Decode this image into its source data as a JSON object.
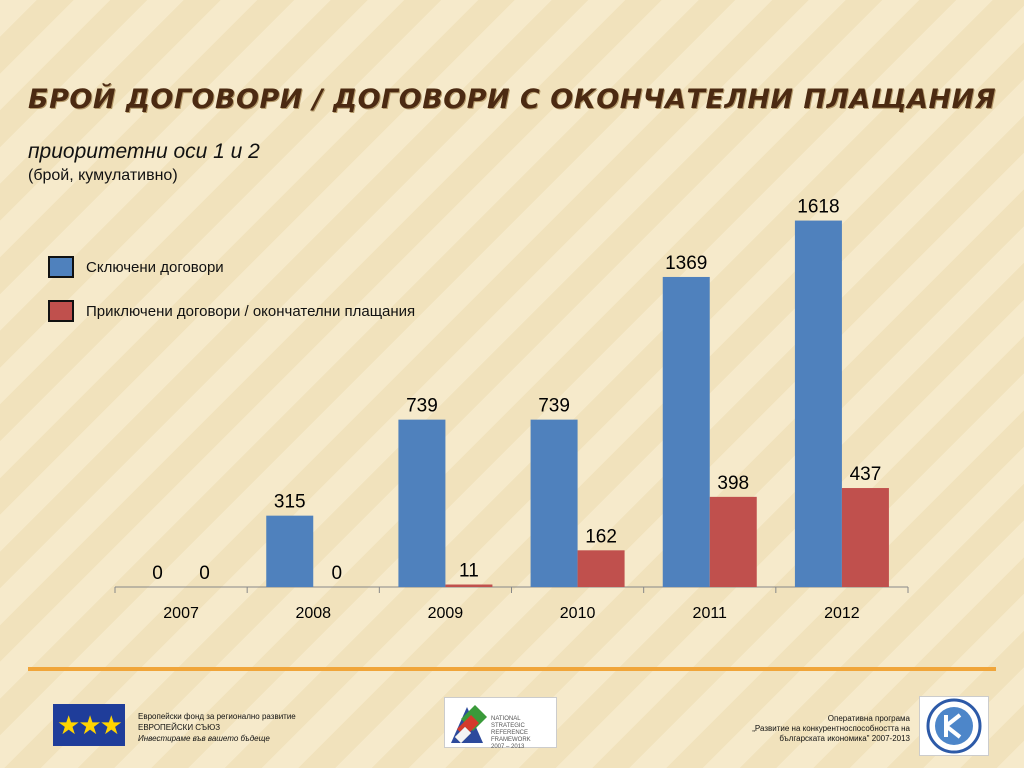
{
  "title": "БРОЙ ДОГОВОРИ / ДОГОВОРИ С ОКОНЧАТЕЛНИ ПЛАЩАНИЯ",
  "subtitle": "приоритетни оси 1 и 2",
  "subtitle2": "(брой, кумулативно)",
  "colors": {
    "series1": "#4f81bd",
    "series2": "#c0504d",
    "accent": "#f0a53a"
  },
  "chart_data": {
    "type": "bar",
    "categories": [
      "2007",
      "2008",
      "2009",
      "2010",
      "2011",
      "2012"
    ],
    "series": [
      {
        "name": "Сключени договори",
        "values": [
          0,
          315,
          739,
          739,
          1369,
          1618
        ]
      },
      {
        "name": "Приключени договори / окончателни плащания",
        "values": [
          0,
          0,
          11,
          162,
          398,
          437
        ]
      }
    ],
    "ylim": [
      0,
      1700
    ],
    "grid": false,
    "legend": "top-left"
  },
  "footer": {
    "eu_line1": "Европейски фонд за регионално развитие",
    "eu_line2": "ЕВРОПЕЙСКИ СЪЮЗ",
    "eu_line3": "Инвестираме във вашето бъдеще",
    "nsrf_line1": "NATIONAL",
    "nsrf_line2": "STRATEGIC",
    "nsrf_line3": "REFERENCE FRAMEWORK",
    "nsrf_line4": "2007 – 2013",
    "op_line1": "Оперативна програма",
    "op_line2": "„Развитие на конкурентноспособността на",
    "op_line3": "българската икономика\" 2007-2013"
  }
}
